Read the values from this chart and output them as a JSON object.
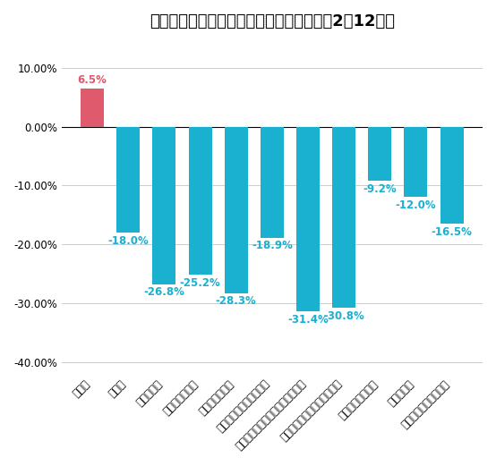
{
  "title": "【産業別】新規求人数　前年同月比（令和2年12月）",
  "categories": [
    "建設業",
    "製造業",
    "情報通信業",
    "運輸業・郵便業",
    "卸売業、小売業",
    "宿泊業、飲料サービス業",
    "学習研究、専門・技術サービス業",
    "生活関連サービス業、娯楽業",
    "教育、学習支援業",
    "医療、福祉",
    "サービス業（その他）"
  ],
  "values": [
    6.5,
    -18.0,
    -26.8,
    -25.2,
    -28.3,
    -18.9,
    -31.4,
    -30.8,
    -9.2,
    -12.0,
    -16.5
  ],
  "bar_color_positive": "#e05a6e",
  "bar_color_negative": "#1ab0d0",
  "label_color_positive": "#e05a6e",
  "label_color_negative": "#1ab0d0",
  "ylim_min": -42.0,
  "ylim_max": 15.0,
  "yticks": [
    10.0,
    0.0,
    -10.0,
    -20.0,
    -30.0,
    -40.0
  ],
  "title_fontsize": 13,
  "tick_fontsize": 8.5,
  "label_fontsize": 8.5,
  "grid_color": "#cccccc",
  "background_color": "#ffffff",
  "bar_width": 0.65
}
